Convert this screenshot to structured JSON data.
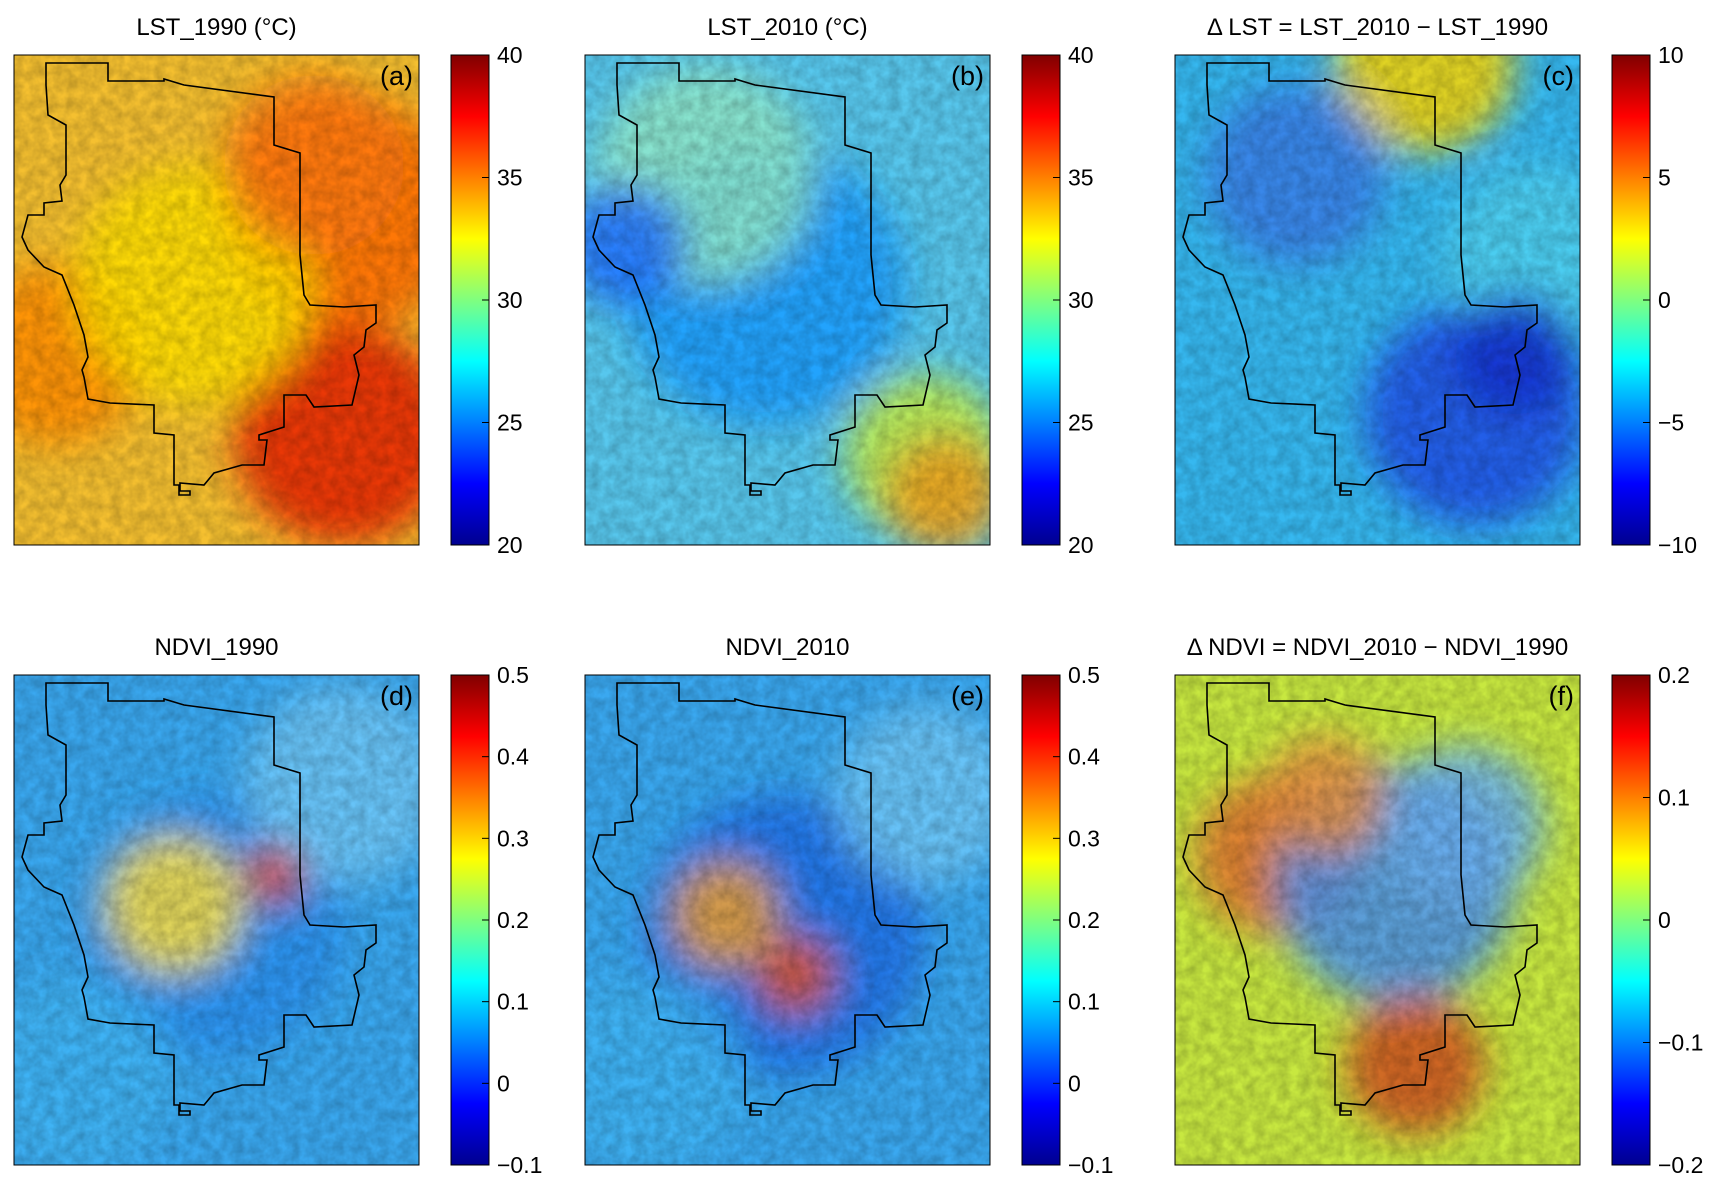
{
  "figure": {
    "panels": [
      {
        "id": "a",
        "title": "LST_1990 (°C)",
        "letter": "(a)",
        "map_style": "hot",
        "colorbar": {
          "ticks": [
            "40",
            "35",
            "30",
            "25",
            "20"
          ]
        }
      },
      {
        "id": "b",
        "title": "LST_2010 (°C)",
        "letter": "(b)",
        "map_style": "cool",
        "colorbar": {
          "ticks": [
            "40",
            "35",
            "30",
            "25",
            "20"
          ]
        }
      },
      {
        "id": "c",
        "title": "Δ LST = LST_2010 − LST_1990",
        "letter": "(c)",
        "map_style": "diff",
        "colorbar": {
          "ticks": [
            "10",
            "5",
            "0",
            "−5",
            "−10"
          ]
        }
      },
      {
        "id": "d",
        "title": "NDVI_1990",
        "letter": "(d)",
        "map_style": "ndvi",
        "colorbar": {
          "ticks": [
            "0.5",
            "0.4",
            "0.3",
            "0.2",
            "0.1",
            "0",
            "−0.1"
          ]
        }
      },
      {
        "id": "e",
        "title": "NDVI_2010",
        "letter": "(e)",
        "map_style": "ndvi2",
        "colorbar": {
          "ticks": [
            "0.5",
            "0.4",
            "0.3",
            "0.2",
            "0.1",
            "0",
            "−0.1"
          ]
        }
      },
      {
        "id": "f",
        "title": "Δ NDVI = NDVI_2010 − NDVI_1990",
        "letter": "(f)",
        "map_style": "ndvidiff",
        "colorbar": {
          "ticks": [
            "0.2",
            "0.1",
            "0",
            "−0.1",
            "−0.2"
          ]
        }
      }
    ],
    "colormap": [
      "#00008f",
      "#0000ff",
      "#00ffff",
      "#ffff00",
      "#ff0000",
      "#800000"
    ]
  }
}
